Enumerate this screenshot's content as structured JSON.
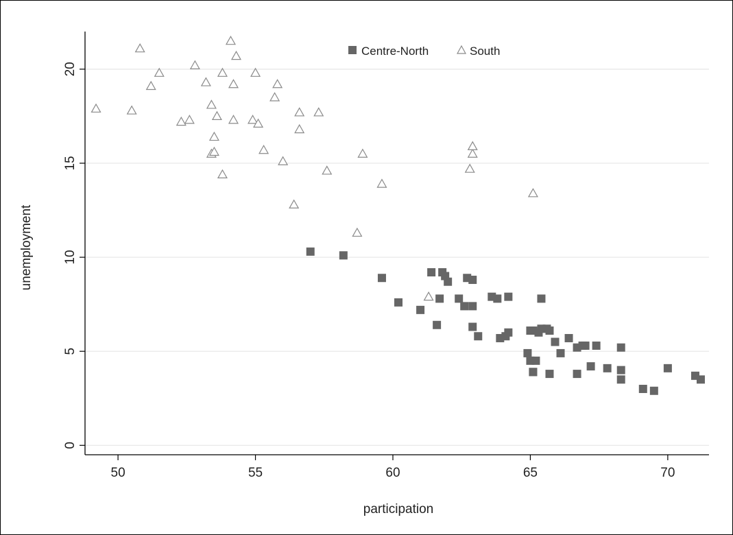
{
  "chart_data": {
    "type": "scatter",
    "xlabel": "participation",
    "ylabel": "unemployment",
    "xlim": [
      48.8,
      71.5
    ],
    "ylim": [
      -0.5,
      22.0
    ],
    "xticks": [
      50,
      55,
      60,
      65,
      70
    ],
    "yticks": [
      0,
      5,
      10,
      15,
      20
    ],
    "grid": "horizontal",
    "legend_position": "top",
    "colors": {
      "centre_north": "#666666",
      "south_stroke": "#8a8a8a",
      "grid": "#e6e6e6",
      "axis": "#000000"
    },
    "series": [
      {
        "name": "Centre-North",
        "marker": "square",
        "x": [
          57.0,
          58.2,
          59.6,
          61.4,
          61.8,
          61.9,
          62.0,
          61.7,
          62.4,
          62.9,
          62.7,
          60.2,
          61.0,
          61.6,
          62.6,
          62.9,
          63.6,
          63.8,
          64.2,
          65.4,
          62.9,
          63.1,
          63.9,
          64.1,
          64.2,
          65.0,
          65.1,
          65.3,
          65.4,
          65.6,
          65.7,
          65.9,
          66.1,
          66.4,
          66.7,
          66.9,
          67.0,
          67.4,
          68.3,
          64.9,
          65.0,
          65.2,
          65.1,
          65.1,
          65.7,
          66.7,
          67.2,
          67.8,
          68.3,
          68.3,
          69.1,
          69.5,
          70.0,
          71.0,
          71.2
        ],
        "y": [
          10.3,
          10.1,
          8.9,
          9.2,
          9.2,
          9.0,
          8.7,
          7.8,
          7.8,
          8.8,
          8.9,
          7.6,
          7.2,
          6.4,
          7.4,
          7.4,
          7.9,
          7.8,
          7.9,
          7.8,
          6.3,
          5.8,
          5.7,
          5.8,
          6.0,
          6.1,
          6.1,
          6.0,
          6.2,
          6.2,
          6.1,
          5.5,
          4.9,
          5.7,
          5.2,
          5.3,
          5.3,
          5.3,
          5.2,
          4.9,
          4.5,
          4.5,
          3.9,
          3.9,
          3.8,
          3.8,
          4.2,
          4.1,
          4.0,
          3.5,
          3.0,
          2.9,
          4.1,
          3.7,
          3.5
        ]
      },
      {
        "name": "South",
        "marker": "triangle",
        "x": [
          49.2,
          50.5,
          50.8,
          51.2,
          51.5,
          52.3,
          52.6,
          52.8,
          53.2,
          53.4,
          53.4,
          53.5,
          53.5,
          53.6,
          53.8,
          53.8,
          54.1,
          54.2,
          54.2,
          54.3,
          54.9,
          55.0,
          55.1,
          55.3,
          55.7,
          55.8,
          56.0,
          56.4,
          56.6,
          56.6,
          57.3,
          57.6,
          58.7,
          58.9,
          59.6,
          61.3,
          62.8,
          62.9,
          62.9,
          65.1
        ],
        "y": [
          17.9,
          17.8,
          21.1,
          19.1,
          19.8,
          17.2,
          17.3,
          20.2,
          19.3,
          18.1,
          15.5,
          16.4,
          15.6,
          17.5,
          19.8,
          14.4,
          21.5,
          19.2,
          17.3,
          20.7,
          17.3,
          19.8,
          17.1,
          15.7,
          18.5,
          19.2,
          15.1,
          12.8,
          17.7,
          16.8,
          17.7,
          14.6,
          11.3,
          15.5,
          13.9,
          7.9,
          14.7,
          15.5,
          15.9,
          13.4
        ]
      }
    ]
  }
}
